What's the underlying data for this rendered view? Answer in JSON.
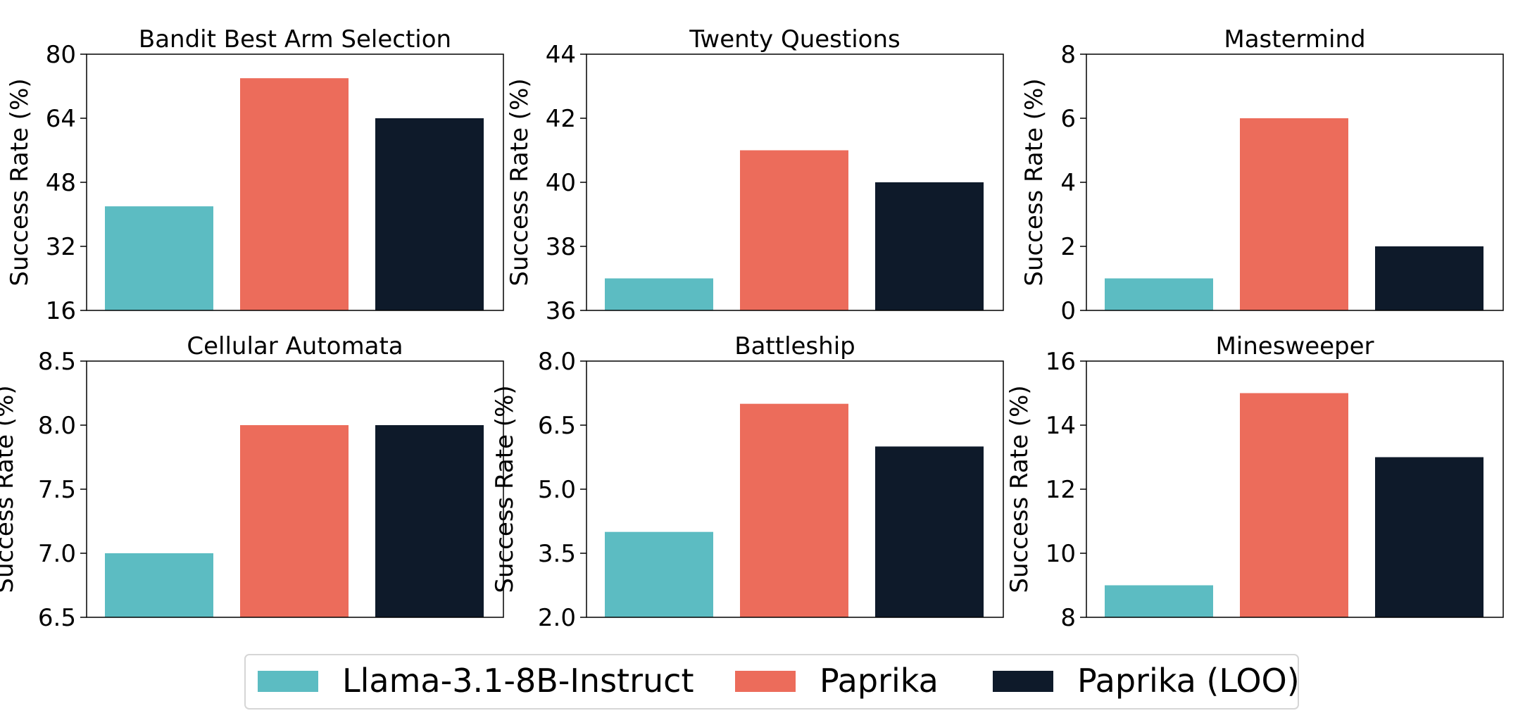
{
  "legend": {
    "items": [
      {
        "label": "Llama-3.1-8B-Instruct",
        "color": "#5cbcc2"
      },
      {
        "label": "Paprika",
        "color": "#ec6c5b"
      },
      {
        "label": "Paprika (LOO)",
        "color": "#0e1a2a"
      }
    ]
  },
  "chart_data": [
    {
      "type": "bar",
      "title": "Bandit Best Arm Selection",
      "ylabel": "Success Rate (%)",
      "categories": [
        "Llama-3.1-8B-Instruct",
        "Paprika",
        "Paprika (LOO)"
      ],
      "values": [
        42,
        74,
        64
      ],
      "ylim": [
        16,
        80
      ],
      "yticks": [
        "16",
        "32",
        "48",
        "64",
        "80"
      ],
      "grid": false
    },
    {
      "type": "bar",
      "title": "Twenty Questions",
      "ylabel": "Success Rate (%)",
      "categories": [
        "Llama-3.1-8B-Instruct",
        "Paprika",
        "Paprika (LOO)"
      ],
      "values": [
        37,
        41,
        40
      ],
      "ylim": [
        36,
        44
      ],
      "yticks": [
        "36",
        "38",
        "40",
        "42",
        "44"
      ],
      "grid": false
    },
    {
      "type": "bar",
      "title": "Mastermind",
      "ylabel": "Success Rate (%)",
      "categories": [
        "Llama-3.1-8B-Instruct",
        "Paprika",
        "Paprika (LOO)"
      ],
      "values": [
        1,
        6,
        2
      ],
      "ylim": [
        0,
        8
      ],
      "yticks": [
        "0",
        "2",
        "4",
        "6",
        "8"
      ],
      "grid": false
    },
    {
      "type": "bar",
      "title": "Cellular Automata",
      "ylabel": "Success Rate (%)",
      "categories": [
        "Llama-3.1-8B-Instruct",
        "Paprika",
        "Paprika (LOO)"
      ],
      "values": [
        7.0,
        8.0,
        8.0
      ],
      "ylim": [
        6.5,
        8.5
      ],
      "yticks": [
        "6.5",
        "7.0",
        "7.5",
        "8.0",
        "8.5"
      ],
      "grid": false
    },
    {
      "type": "bar",
      "title": "Battleship",
      "ylabel": "Success Rate (%)",
      "categories": [
        "Llama-3.1-8B-Instruct",
        "Paprika",
        "Paprika (LOO)"
      ],
      "values": [
        4,
        7,
        6
      ],
      "ylim": [
        2.0,
        8.0
      ],
      "yticks": [
        "2.0",
        "3.5",
        "5.0",
        "6.5",
        "8.0"
      ],
      "grid": false
    },
    {
      "type": "bar",
      "title": "Minesweeper",
      "ylabel": "Success Rate (%)",
      "categories": [
        "Llama-3.1-8B-Instruct",
        "Paprika",
        "Paprika (LOO)"
      ],
      "values": [
        9,
        15,
        13
      ],
      "ylim": [
        8,
        16
      ],
      "yticks": [
        "8",
        "10",
        "12",
        "14",
        "16"
      ],
      "grid": false
    }
  ]
}
